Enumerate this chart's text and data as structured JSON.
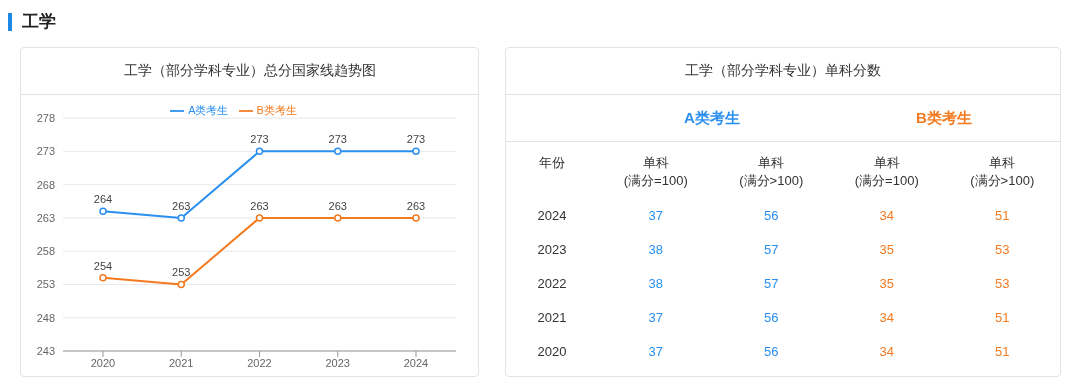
{
  "chart_data": [
    {
      "type": "line",
      "title": "工学（部分学科专业）总分国家线趋势图",
      "annotations": [
        "工学"
      ],
      "categories": [
        "2020",
        "2021",
        "2022",
        "2023",
        "2024"
      ],
      "series": [
        {
          "name": "A类考生",
          "color": "#2b8ff0",
          "values": [
            264,
            263,
            273,
            273,
            273
          ]
        },
        {
          "name": "B类考生",
          "color": "#f47a20",
          "values": [
            254,
            253,
            263,
            263,
            263
          ]
        }
      ],
      "ylim": [
        243,
        278
      ],
      "yticks": [
        243,
        248,
        253,
        258,
        263,
        268,
        273,
        278
      ],
      "grid": "y",
      "legend": "top",
      "marker": "circle",
      "data_labels": true
    },
    {
      "type": "heatmap",
      "title": "工学（部分学科专业）单科分数",
      "ylabel": "年份",
      "annotations": [
        "A类考生",
        "B类考生"
      ],
      "categories": [
        "单科\n(满分=100)",
        "单科\n(满分>100)",
        "单科\n(满分=100)",
        "单科\n(满分>100)"
      ],
      "y_categories": [
        "2024",
        "2023",
        "2022",
        "2021",
        "2020"
      ],
      "colors": [
        "#2b8ff0",
        "#2b8ff0",
        "#f47a20",
        "#f47a20"
      ],
      "data_labels": true,
      "cells": [
        [
          37,
          56,
          34,
          51
        ],
        [
          38,
          57,
          35,
          53
        ],
        [
          38,
          57,
          35,
          53
        ],
        [
          37,
          56,
          34,
          51
        ],
        [
          37,
          56,
          34,
          51
        ]
      ]
    }
  ]
}
